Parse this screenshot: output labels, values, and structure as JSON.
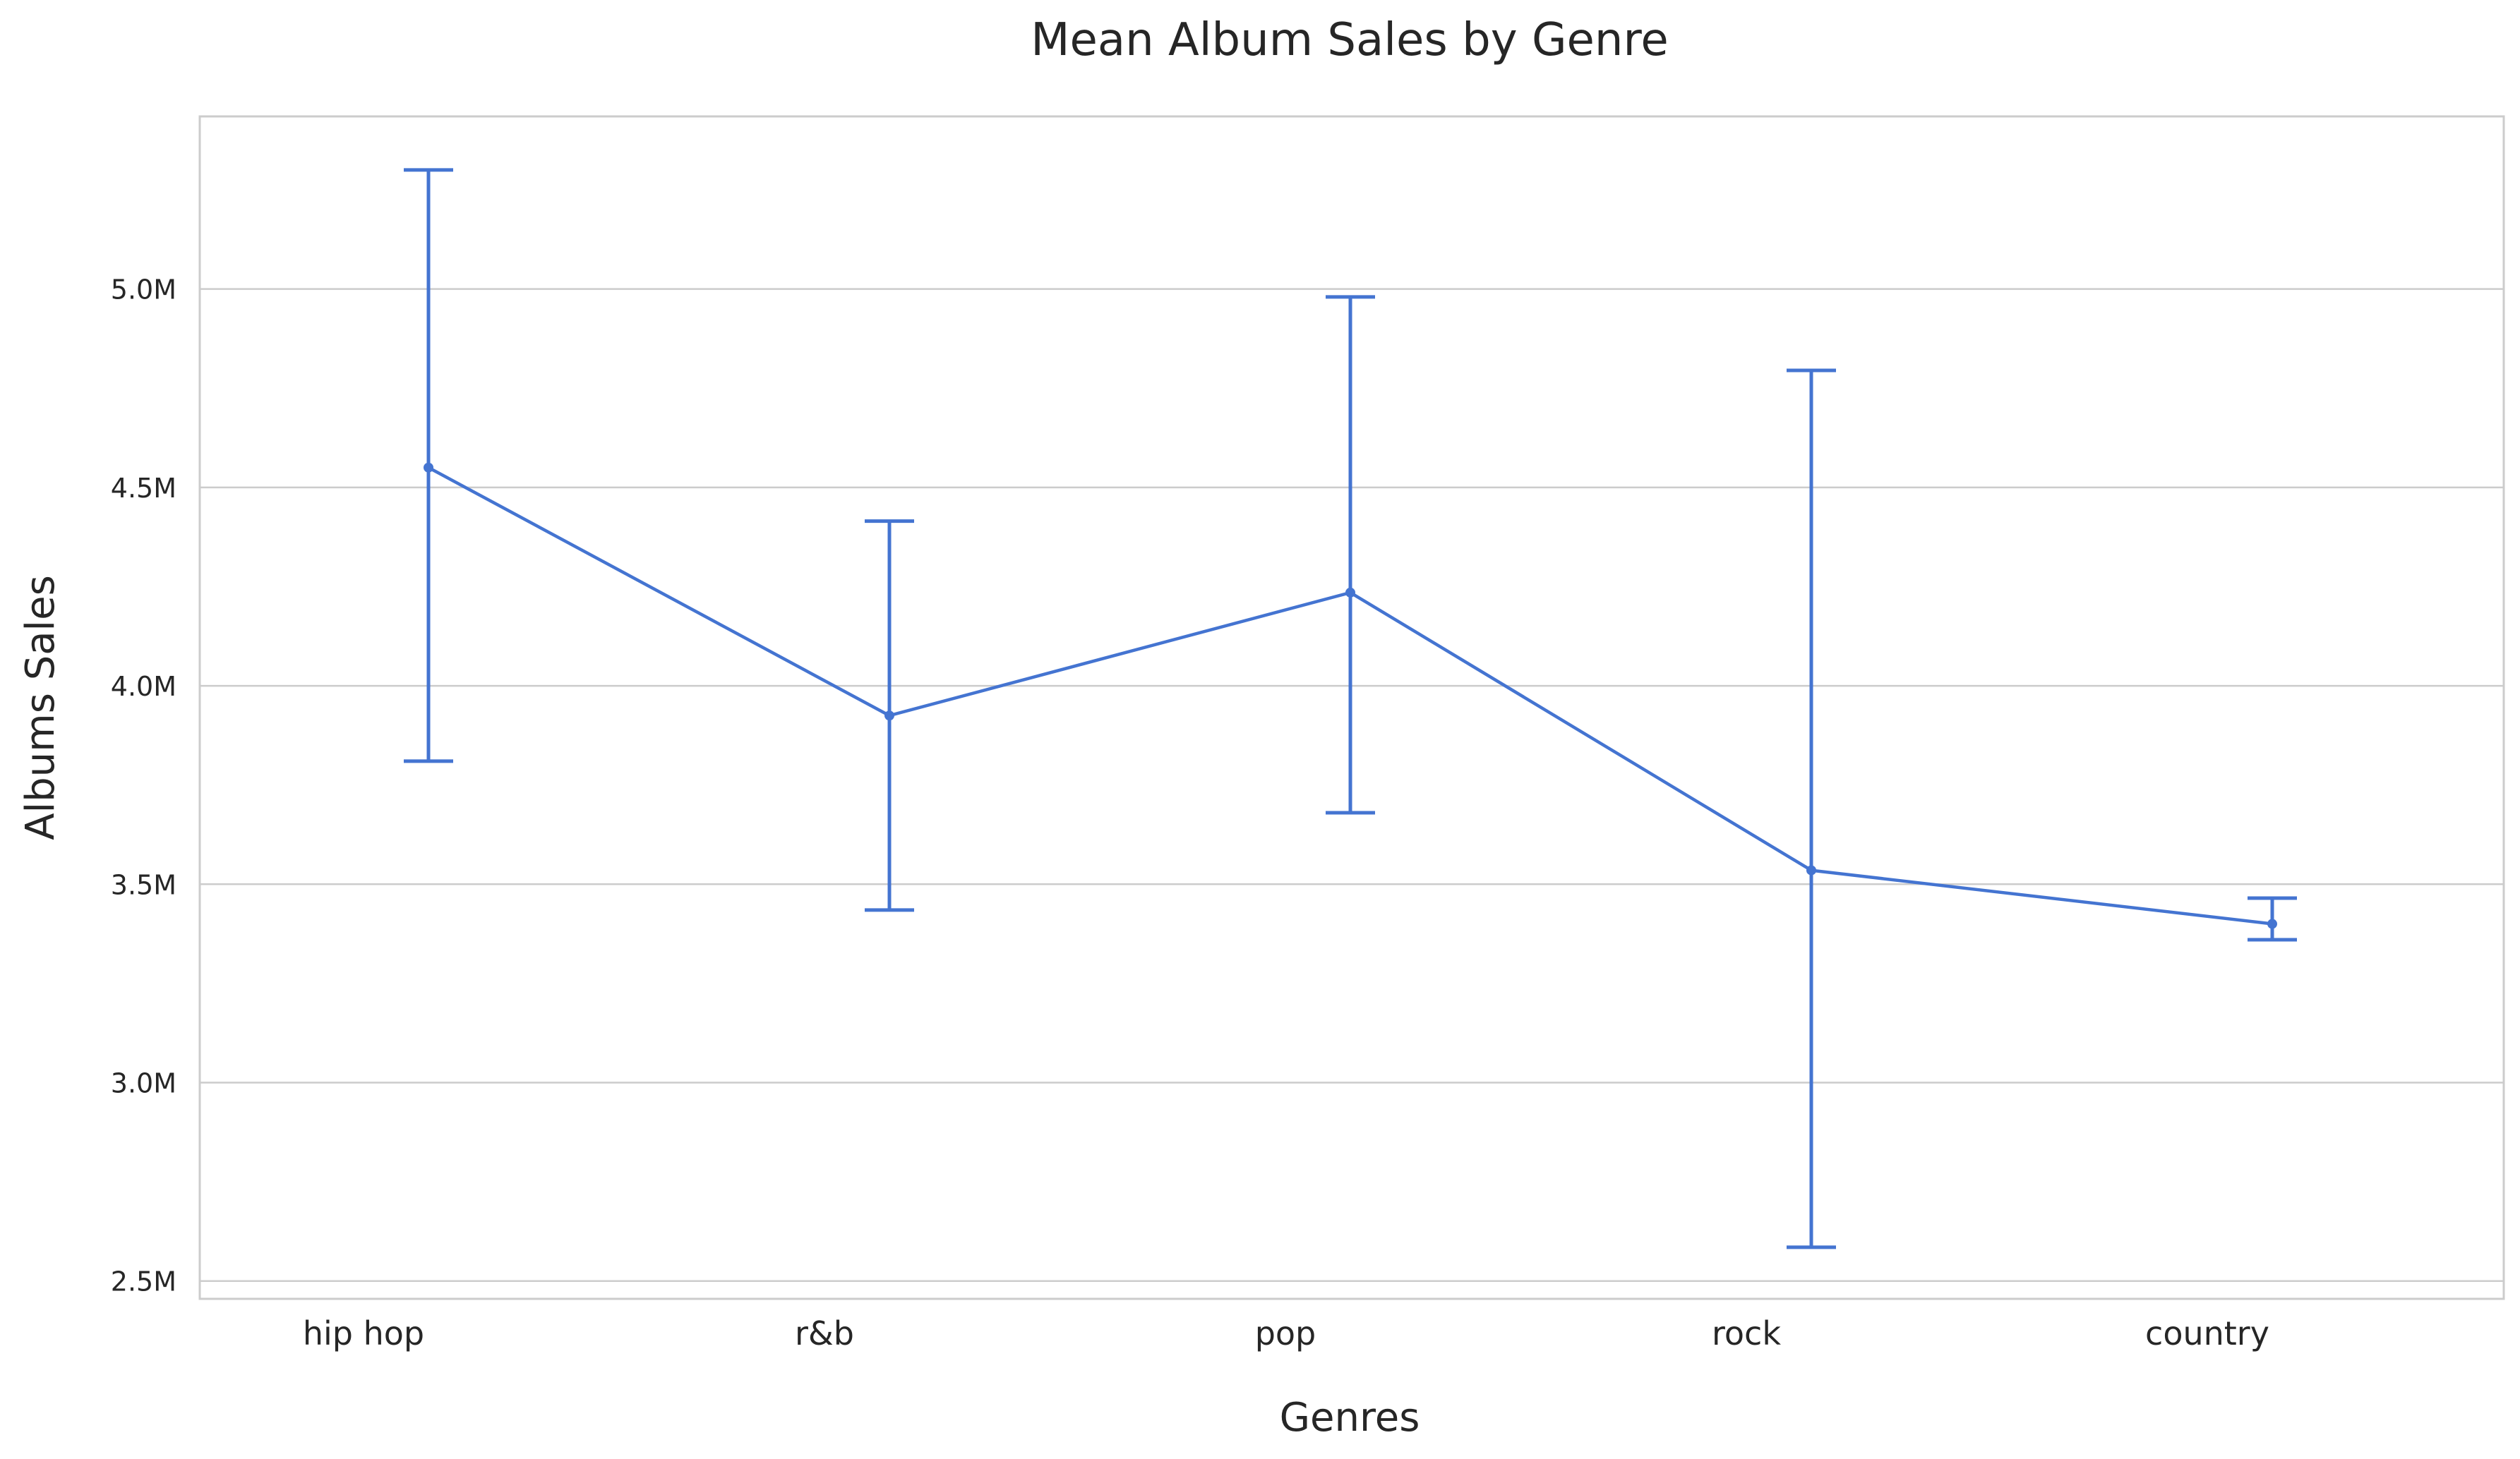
{
  "chart_data": {
    "type": "line",
    "title": "Mean Album Sales by Genre",
    "xlabel": "Genres",
    "ylabel": "Albums Sales",
    "categories": [
      "hip hop",
      "r&b",
      "pop",
      "rock",
      "country"
    ],
    "series": [
      {
        "values": [
          4550000,
          3925000,
          4235000,
          3535000,
          3400000
        ],
        "error_low": [
          3810000,
          3435000,
          3680000,
          2585000,
          3360000
        ],
        "error_high": [
          5300000,
          4415000,
          4980000,
          4795000,
          3465000
        ]
      }
    ],
    "yticks": [
      2500000,
      3000000,
      3500000,
      4000000,
      4500000,
      5000000
    ],
    "ytick_labels": [
      "2.5M",
      "3.0M",
      "3.5M",
      "4.0M",
      "4.5M",
      "5.0M"
    ],
    "ylim": [
      2455000,
      5435000
    ],
    "grid": true,
    "grid_axis": "y",
    "colors": {
      "line": "#4474d1",
      "grid": "#cccccc",
      "text": "#262626"
    }
  }
}
